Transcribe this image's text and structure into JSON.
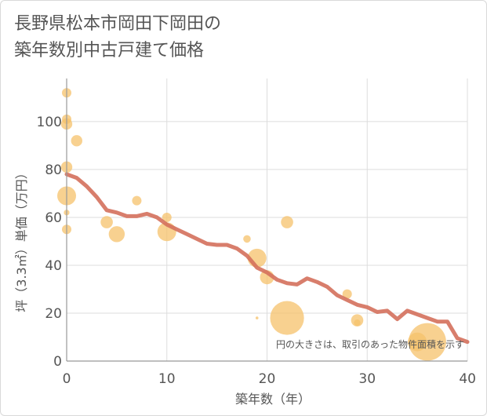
{
  "title": {
    "line1": "長野県松本市岡田下岡田の",
    "line2": "築年数別中古戸建て価格"
  },
  "chart_data": {
    "type": "scatter",
    "xlabel": "築年数（年）",
    "ylabel": "坪（3.3㎡）単価（万円）",
    "xlim": [
      0,
      40
    ],
    "ylim": [
      0,
      118
    ],
    "x_ticks": [
      "0",
      "10",
      "20",
      "30",
      "40"
    ],
    "y_ticks": [
      "0",
      "20",
      "40",
      "60",
      "80",
      "100"
    ],
    "x_tick_values": [
      0,
      10,
      20,
      30,
      40
    ],
    "y_tick_values": [
      0,
      20,
      40,
      60,
      80,
      100
    ],
    "grid": true,
    "note": "円の大きさは、取引のあった物件面積を示す",
    "colors": {
      "bubble": "#f5c26b",
      "line": "#d4705c",
      "grid": "#dddddd",
      "axis": "#999999"
    },
    "bubbles": [
      {
        "x": 0,
        "y": 112,
        "size": 1
      },
      {
        "x": 0,
        "y": 101,
        "size": 1
      },
      {
        "x": 0,
        "y": 99,
        "size": 1.2
      },
      {
        "x": 0,
        "y": 81,
        "size": 1.2
      },
      {
        "x": 0,
        "y": 69,
        "size": 2
      },
      {
        "x": 0,
        "y": 62,
        "size": 0.6
      },
      {
        "x": 0,
        "y": 55,
        "size": 1
      },
      {
        "x": 1,
        "y": 92,
        "size": 1.2
      },
      {
        "x": 4,
        "y": 58,
        "size": 1.3
      },
      {
        "x": 5,
        "y": 53,
        "size": 1.7
      },
      {
        "x": 7,
        "y": 67,
        "size": 1
      },
      {
        "x": 10,
        "y": 60,
        "size": 1
      },
      {
        "x": 10,
        "y": 54,
        "size": 2
      },
      {
        "x": 18,
        "y": 51,
        "size": 0.8
      },
      {
        "x": 19,
        "y": 43,
        "size": 2
      },
      {
        "x": 19,
        "y": 18,
        "size": 0.3
      },
      {
        "x": 20,
        "y": 35,
        "size": 1.5
      },
      {
        "x": 22,
        "y": 58,
        "size": 1.3
      },
      {
        "x": 22,
        "y": 18,
        "size": 3.6
      },
      {
        "x": 28,
        "y": 28,
        "size": 1
      },
      {
        "x": 29,
        "y": 17,
        "size": 1.3
      },
      {
        "x": 29,
        "y": 16,
        "size": 0.7
      },
      {
        "x": 35,
        "y": 8,
        "size": 2
      },
      {
        "x": 36,
        "y": 8,
        "size": 4
      }
    ],
    "series": [
      {
        "x": [
          0,
          1,
          2,
          3,
          4,
          5,
          6,
          7,
          8,
          9,
          10,
          11,
          12,
          13,
          14,
          15,
          16,
          17,
          18,
          19,
          20,
          21,
          22,
          23,
          24,
          25,
          26,
          27,
          28,
          29,
          30,
          31,
          32,
          33,
          34,
          35,
          36,
          37,
          38,
          39,
          40
        ],
        "values": [
          78,
          76.5,
          73,
          68.5,
          63,
          62,
          60.5,
          60.5,
          61.5,
          60,
          57,
          55,
          53,
          51,
          49,
          48.5,
          48.5,
          47,
          44,
          39,
          37,
          34,
          32.5,
          32,
          34.5,
          33,
          31,
          27.5,
          25.5,
          23.5,
          22.5,
          20.5,
          21,
          17.5,
          21,
          19.5,
          18,
          16.5,
          16.5,
          9.5,
          8
        ]
      }
    ]
  }
}
